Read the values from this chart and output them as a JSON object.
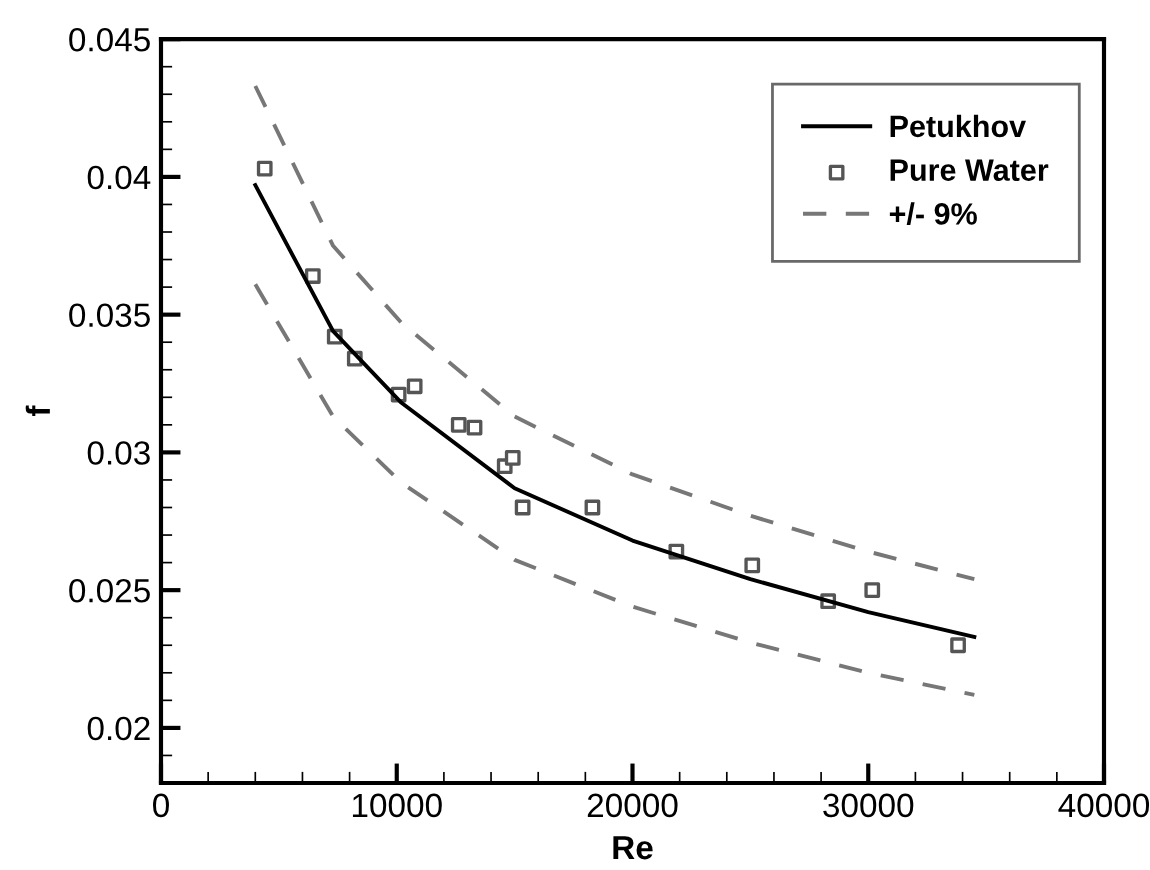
{
  "chart_data": {
    "type": "line",
    "xlabel": "Re",
    "ylabel": "f",
    "xlim": [
      0,
      40000
    ],
    "xticks": [
      0,
      10000,
      20000,
      30000,
      40000
    ],
    "ylim": [
      0.018,
      0.045
    ],
    "yticks": [
      0.02,
      0.025,
      0.03,
      0.035,
      0.04,
      0.045
    ],
    "grid": false,
    "legend": "top right",
    "series": [
      {
        "name": "Petukhov",
        "color": "#000000",
        "line_style": "solid",
        "x": [
          4000,
          7300,
          10200,
          15000,
          20000,
          25000,
          30000,
          34500
        ],
        "values": [
          0.0397,
          0.0344,
          0.0318,
          0.0287,
          0.0268,
          0.0254,
          0.0242,
          0.0233
        ]
      },
      {
        "name": "Pure Water",
        "type": "scatter",
        "marker": "square",
        "color": "#555555",
        "x": [
          4400,
          6440,
          7370,
          8220,
          10080,
          10760,
          12630,
          13300,
          14580,
          14920,
          15340,
          18300,
          21860,
          25080,
          28300,
          30170,
          33810
        ],
        "values": [
          0.0403,
          0.0364,
          0.0342,
          0.0334,
          0.0321,
          0.0324,
          0.031,
          0.0309,
          0.0295,
          0.0298,
          0.028,
          0.028,
          0.0264,
          0.0259,
          0.0246,
          0.025,
          0.023
        ]
      },
      {
        "name": "+/- 9%",
        "color": "#777777",
        "line_style": "dashed",
        "x": [
          4000,
          7300,
          10200,
          15000,
          20000,
          25000,
          30000,
          34500
        ],
        "values": [
          0.0433,
          0.0375,
          0.0347,
          0.0313,
          0.0292,
          0.0277,
          0.0264,
          0.0254
        ]
      },
      {
        "color": "#777777",
        "line_style": "dashed",
        "x": [
          4000,
          7300,
          10200,
          15000,
          20000,
          25000,
          30000,
          34500
        ],
        "values": [
          0.0361,
          0.0313,
          0.0289,
          0.0261,
          0.0244,
          0.0231,
          0.022,
          0.0212
        ]
      }
    ]
  }
}
